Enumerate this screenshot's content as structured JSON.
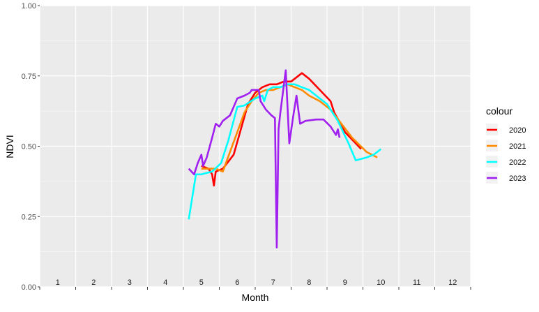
{
  "chart_data": {
    "type": "line",
    "title": "",
    "xlabel": "Month",
    "ylabel": "NDVI",
    "xlim": [
      0.5,
      12.5
    ],
    "ylim": [
      0,
      1
    ],
    "x_ticks": [
      1,
      2,
      3,
      4,
      5,
      6,
      7,
      8,
      9,
      10,
      11,
      12
    ],
    "x_tick_labels": [
      "1",
      "2",
      "3",
      "4",
      "5",
      "6",
      "7",
      "8",
      "9",
      "10",
      "11",
      "12"
    ],
    "y_ticks": [
      0,
      0.25,
      0.5,
      0.75,
      1
    ],
    "y_tick_labels": [
      "0.00",
      "0.25",
      "0.50",
      "0.75",
      "1.00"
    ],
    "grid": true,
    "legend": {
      "title": "colour",
      "position": "right",
      "entries": [
        "2020",
        "2021",
        "2022",
        "2023"
      ]
    },
    "series": [
      {
        "name": "2020",
        "color": "#ff0000",
        "points": [
          [
            5.0,
            0.43
          ],
          [
            5.2,
            0.42
          ],
          [
            5.3,
            0.4
          ],
          [
            5.35,
            0.36
          ],
          [
            5.4,
            0.41
          ],
          [
            5.6,
            0.42
          ],
          [
            5.9,
            0.47
          ],
          [
            6.1,
            0.56
          ],
          [
            6.3,
            0.65
          ],
          [
            6.5,
            0.69
          ],
          [
            6.7,
            0.71
          ],
          [
            6.9,
            0.72
          ],
          [
            7.1,
            0.72
          ],
          [
            7.3,
            0.73
          ],
          [
            7.5,
            0.73
          ],
          [
            7.7,
            0.75
          ],
          [
            7.8,
            0.76
          ],
          [
            8.0,
            0.74
          ],
          [
            8.3,
            0.7
          ],
          [
            8.6,
            0.66
          ],
          [
            8.7,
            0.62
          ],
          [
            9.0,
            0.55
          ],
          [
            9.45,
            0.49
          ]
        ]
      },
      {
        "name": "2021",
        "color": "#ff8c00",
        "points": [
          [
            5.0,
            0.42
          ],
          [
            5.2,
            0.42
          ],
          [
            5.4,
            0.42
          ],
          [
            5.6,
            0.41
          ],
          [
            5.8,
            0.48
          ],
          [
            6.0,
            0.55
          ],
          [
            6.2,
            0.62
          ],
          [
            6.4,
            0.66
          ],
          [
            6.6,
            0.69
          ],
          [
            6.8,
            0.7
          ],
          [
            7.0,
            0.7
          ],
          [
            7.2,
            0.71
          ],
          [
            7.4,
            0.72
          ],
          [
            7.6,
            0.71
          ],
          [
            7.8,
            0.7
          ],
          [
            8.0,
            0.68
          ],
          [
            8.3,
            0.66
          ],
          [
            8.6,
            0.63
          ],
          [
            8.9,
            0.58
          ],
          [
            9.2,
            0.53
          ],
          [
            9.6,
            0.48
          ],
          [
            9.9,
            0.46
          ]
        ]
      },
      {
        "name": "2022",
        "color": "#00ffff",
        "points": [
          [
            4.65,
            0.24
          ],
          [
            4.85,
            0.4
          ],
          [
            5.0,
            0.4
          ],
          [
            5.3,
            0.41
          ],
          [
            5.55,
            0.44
          ],
          [
            5.75,
            0.52
          ],
          [
            6.0,
            0.64
          ],
          [
            6.2,
            0.645
          ],
          [
            6.5,
            0.67
          ],
          [
            6.7,
            0.68
          ],
          [
            6.75,
            0.66
          ],
          [
            6.85,
            0.7
          ],
          [
            7.0,
            0.71
          ],
          [
            7.2,
            0.71
          ],
          [
            7.4,
            0.72
          ],
          [
            7.6,
            0.72
          ],
          [
            7.8,
            0.71
          ],
          [
            8.0,
            0.7
          ],
          [
            8.2,
            0.68
          ],
          [
            8.5,
            0.65
          ],
          [
            8.8,
            0.59
          ],
          [
            9.1,
            0.51
          ],
          [
            9.3,
            0.45
          ],
          [
            9.6,
            0.46
          ],
          [
            9.8,
            0.47
          ],
          [
            10.0,
            0.49
          ]
        ]
      },
      {
        "name": "2023",
        "color": "#a020f0",
        "points": [
          [
            4.65,
            0.42
          ],
          [
            4.8,
            0.4
          ],
          [
            4.9,
            0.44
          ],
          [
            5.0,
            0.47
          ],
          [
            5.05,
            0.43
          ],
          [
            5.15,
            0.46
          ],
          [
            5.3,
            0.53
          ],
          [
            5.4,
            0.58
          ],
          [
            5.5,
            0.57
          ],
          [
            5.6,
            0.59
          ],
          [
            5.8,
            0.61
          ],
          [
            6.0,
            0.67
          ],
          [
            6.2,
            0.68
          ],
          [
            6.35,
            0.69
          ],
          [
            6.4,
            0.7
          ],
          [
            6.55,
            0.7
          ],
          [
            6.6,
            0.7
          ],
          [
            6.65,
            0.66
          ],
          [
            6.8,
            0.63
          ],
          [
            6.95,
            0.61
          ],
          [
            7.05,
            0.6
          ],
          [
            7.1,
            0.14
          ],
          [
            7.15,
            0.56
          ],
          [
            7.2,
            0.62
          ],
          [
            7.3,
            0.72
          ],
          [
            7.35,
            0.77
          ],
          [
            7.45,
            0.51
          ],
          [
            7.55,
            0.6
          ],
          [
            7.65,
            0.68
          ],
          [
            7.75,
            0.58
          ],
          [
            7.9,
            0.59
          ],
          [
            8.2,
            0.595
          ],
          [
            8.4,
            0.595
          ],
          [
            8.6,
            0.57
          ],
          [
            8.75,
            0.54
          ],
          [
            8.8,
            0.56
          ],
          [
            8.85,
            0.53
          ]
        ]
      }
    ]
  }
}
